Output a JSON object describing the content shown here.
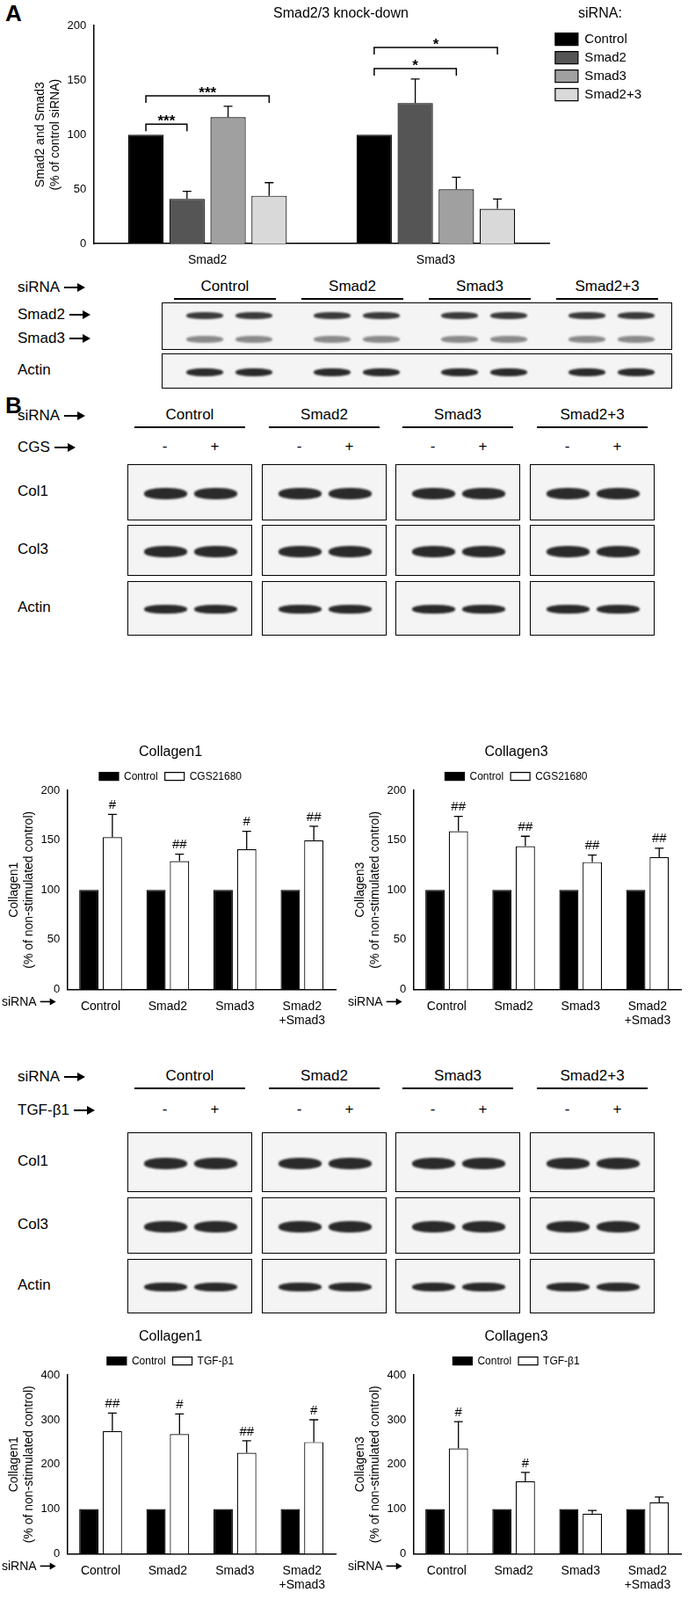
{
  "panel_labels": [
    "A",
    "B"
  ],
  "blots": [
    {
      "lane_label": "siRNA",
      "groups": [
        "Control",
        "Smad2",
        "Smad3",
        "Smad2+3"
      ],
      "rows": [
        "Smad2",
        "Smad3",
        "Actin"
      ]
    },
    {
      "lane_label": "siRNA",
      "groups": [
        "Control",
        "Smad2",
        "Smad3",
        "Smad2+3"
      ],
      "treatment": {
        "label": "CGS",
        "signs": [
          "-",
          "+"
        ]
      },
      "rows": [
        "Col1",
        "Col3",
        "Actin"
      ]
    },
    {
      "lane_label": "siRNA",
      "groups": [
        "Control",
        "Smad2",
        "Smad3",
        "Smad2+3"
      ],
      "treatment": {
        "label": "TGF-β1",
        "signs": [
          "-",
          "+"
        ]
      },
      "rows": [
        "Col1",
        "Col3",
        "Actin"
      ]
    }
  ],
  "chart_data": [
    {
      "type": "bar",
      "title": "Smad2/3 knock-down",
      "y_label": [
        "Smad2 and Smad3",
        "(% of control siRNA)"
      ],
      "categories": [
        "Smad2",
        "Smad3"
      ],
      "series": [
        {
          "name": "Control",
          "color": "#000000",
          "values": [
            100,
            100
          ],
          "errors": [
            null,
            null
          ]
        },
        {
          "name": "Smad2",
          "color": "#555555",
          "values": [
            41,
            129
          ],
          "errors": [
            7,
            22
          ]
        },
        {
          "name": "Smad3",
          "color": "#a0a0a0",
          "values": [
            116,
            50
          ],
          "errors": [
            10,
            11
          ]
        },
        {
          "name": "Smad2+3",
          "color": "#d9d9d9",
          "values": [
            44,
            32
          ],
          "errors": [
            12,
            9
          ]
        }
      ],
      "legend": "right",
      "legend_title": "siRNA:",
      "ylim": [
        0,
        200
      ],
      "yticks": [
        0,
        50,
        100,
        150,
        200
      ],
      "grid": false,
      "significance": [
        {
          "category": "Smad2",
          "from": "Control",
          "to": "Smad2",
          "label": "***"
        },
        {
          "category": "Smad2",
          "from": "Control",
          "to": "Smad2+3",
          "label": "***"
        },
        {
          "category": "Smad3",
          "from": "Control",
          "to": "Smad3",
          "label": "*"
        },
        {
          "category": "Smad3",
          "from": "Control",
          "to": "Smad2+3",
          "label": "*"
        }
      ]
    },
    {
      "type": "bar",
      "title": "Collagen1",
      "y_label": [
        "Collagen1",
        "(% of non-stimulated control)"
      ],
      "x_label": "siRNA",
      "categories": [
        "Control",
        "Smad2",
        "Smad3",
        "Smad2 +Smad3"
      ],
      "series": [
        {
          "name": "Control",
          "color": "#000000",
          "values": [
            100,
            100,
            100,
            100
          ]
        },
        {
          "name": "CGS21680",
          "color": "#ffffff",
          "values": [
            153,
            129,
            141,
            150
          ],
          "errors": [
            23,
            7,
            18,
            14
          ],
          "annotations": [
            "#",
            "##",
            "#",
            "##"
          ]
        }
      ],
      "legend": "top",
      "ylim": [
        0,
        200
      ],
      "yticks": [
        0,
        50,
        100,
        150,
        200
      ],
      "grid": false
    },
    {
      "type": "bar",
      "title": "Collagen3",
      "y_label": [
        "Collagen3",
        "(% of non-stimulated control)"
      ],
      "x_label": "siRNA",
      "categories": [
        "Control",
        "Smad2",
        "Smad3",
        "Smad2 +Smad3"
      ],
      "series": [
        {
          "name": "Control",
          "color": "#000000",
          "values": [
            100,
            100,
            100,
            100
          ]
        },
        {
          "name": "CGS21680",
          "color": "#ffffff",
          "values": [
            159,
            144,
            128,
            133
          ],
          "errors": [
            15,
            10,
            7,
            9
          ],
          "annotations": [
            "##",
            "##",
            "##",
            "##"
          ]
        }
      ],
      "legend": "top",
      "ylim": [
        0,
        200
      ],
      "yticks": [
        0,
        50,
        100,
        150,
        200
      ],
      "grid": false
    },
    {
      "type": "bar",
      "title": "Collagen1",
      "y_label": [
        "Collagen1",
        "(% of non-stimulated control)"
      ],
      "x_label": "siRNA",
      "categories": [
        "Control",
        "Smad2",
        "Smad3",
        "Smad2 +Smad3"
      ],
      "series": [
        {
          "name": "Control",
          "color": "#000000",
          "values": [
            100,
            100,
            100,
            100
          ]
        },
        {
          "name": "TGF-β1",
          "color": "#ffffff",
          "values": [
            275,
            268,
            226,
            250
          ],
          "errors": [
            40,
            45,
            27,
            50
          ],
          "annotations": [
            "##",
            "#",
            "##",
            "#"
          ]
        }
      ],
      "legend": "top",
      "ylim": [
        0,
        400
      ],
      "yticks": [
        0,
        100,
        200,
        300,
        400
      ],
      "grid": false
    },
    {
      "type": "bar",
      "title": "Collagen3",
      "y_label": [
        "Collagen3",
        "(% of non-stimulated control)"
      ],
      "x_label": "siRNA",
      "categories": [
        "Control",
        "Smad2",
        "Smad3",
        "Smad2 +Smad3"
      ],
      "series": [
        {
          "name": "Control",
          "color": "#000000",
          "values": [
            100,
            100,
            100,
            100
          ]
        },
        {
          "name": "TGF-β1",
          "color": "#ffffff",
          "values": [
            236,
            162,
            90,
            115
          ],
          "errors": [
            60,
            20,
            7,
            12
          ],
          "annotations": [
            "#",
            "#",
            null,
            null
          ]
        }
      ],
      "legend": "top",
      "ylim": [
        0,
        400
      ],
      "yticks": [
        0,
        100,
        200,
        300,
        400
      ],
      "grid": false
    }
  ]
}
